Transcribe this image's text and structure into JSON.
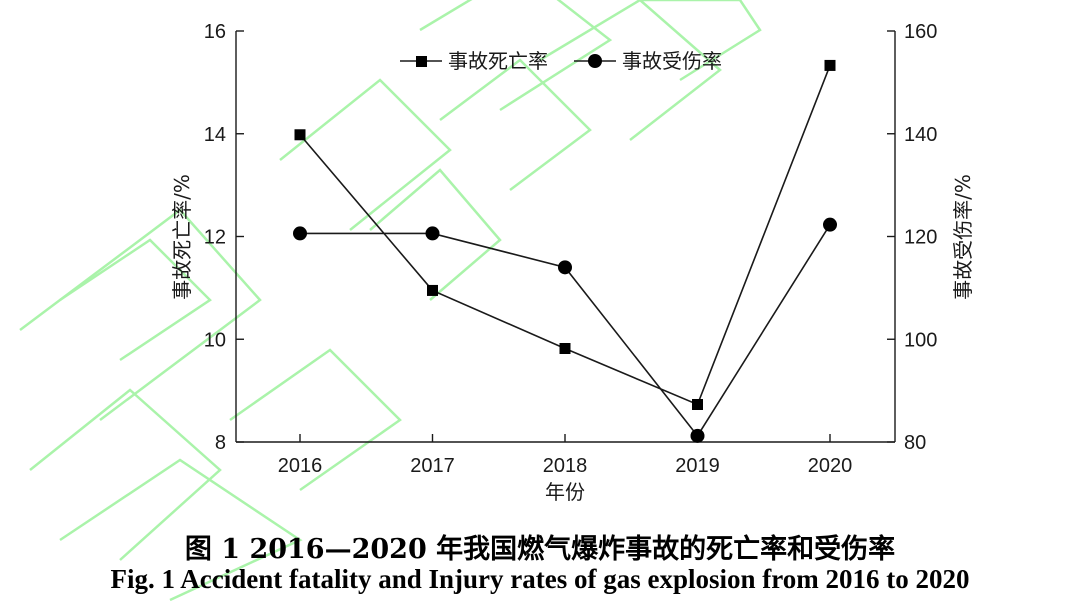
{
  "chart_data": {
    "type": "line",
    "xlabel": "年份",
    "ylabel": "事故死亡率/%",
    "y2label": "事故受伤率/%",
    "categories": [
      "2016",
      "2017",
      "2018",
      "2019",
      "2020"
    ],
    "ylim": [
      8,
      16
    ],
    "y2lim": [
      80,
      160
    ],
    "yticks": [
      "8",
      "10",
      "12",
      "14",
      "16"
    ],
    "y2ticks": [
      "80",
      "100",
      "120",
      "140",
      "160"
    ],
    "legend_position": "top-center",
    "grid": false,
    "series": [
      {
        "name": "事故死亡率",
        "axis": "left",
        "marker": "square",
        "values": [
          13.98,
          10.95,
          9.82,
          8.73,
          15.33
        ]
      },
      {
        "name": "事故受伤率",
        "axis": "right",
        "marker": "circle",
        "values": [
          120.6,
          120.6,
          114.0,
          81.2,
          122.3
        ]
      }
    ],
    "colors": {
      "line": "#1a1a1a",
      "watermark": "#8ef08e"
    }
  },
  "caption": {
    "cn": "图 1 2016—2020 年我国燃气爆炸事故的死亡率和受伤率",
    "en": "Fig. 1 Accident fatality and Injury rates of gas explosion from 2016 to 2020"
  }
}
